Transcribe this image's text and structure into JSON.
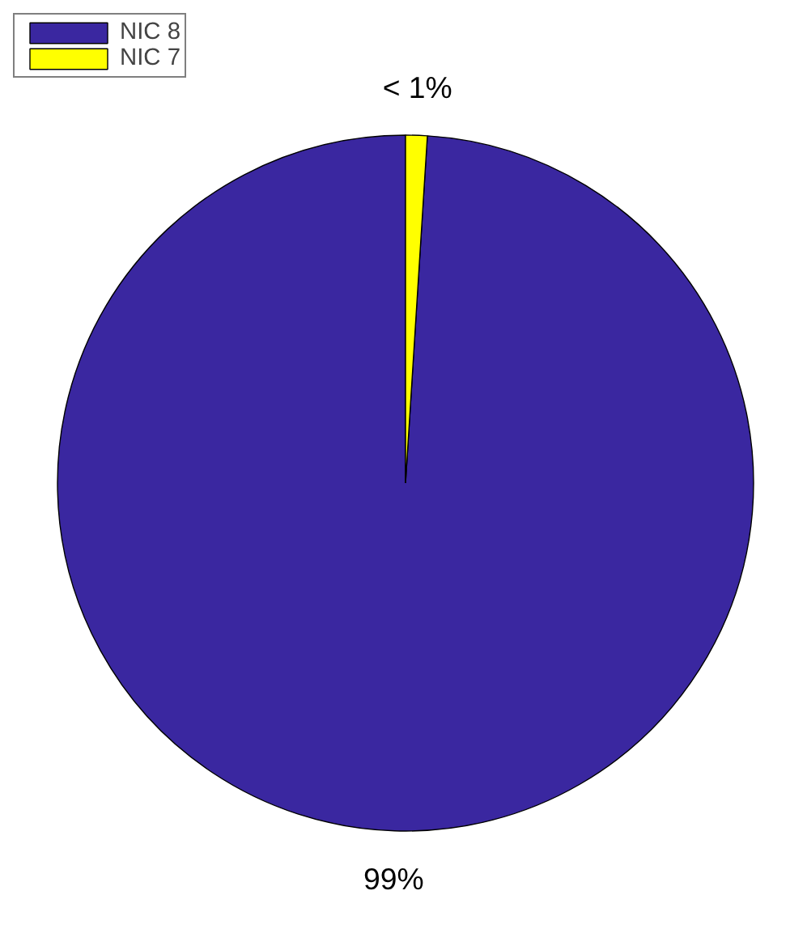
{
  "chart_data": {
    "type": "pie",
    "categories": [
      "NIC 8",
      "NIC 7"
    ],
    "values": [
      99,
      1
    ],
    "colors": [
      "#3a27a0",
      "#ffff00"
    ],
    "value_labels": [
      "99%",
      "< 1%"
    ],
    "legend": "top left"
  }
}
